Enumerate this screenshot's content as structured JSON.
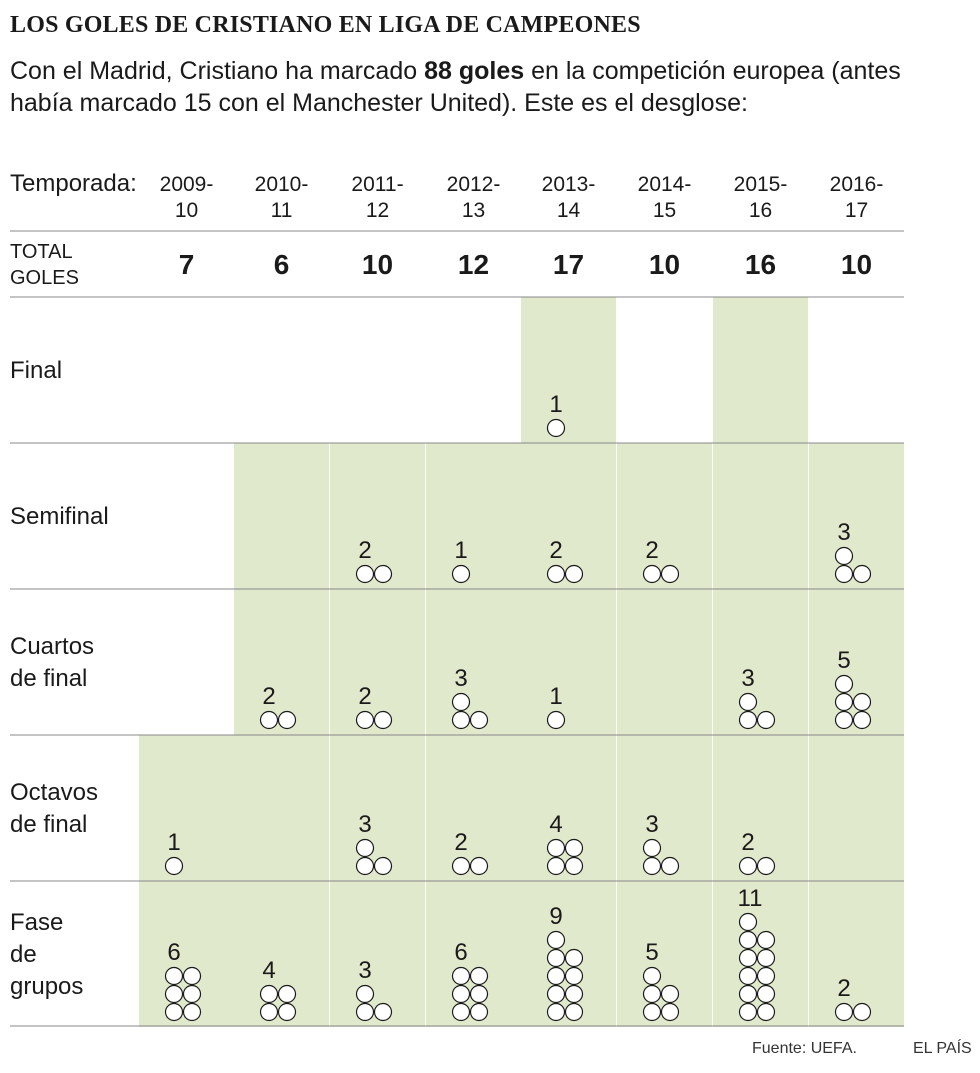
{
  "header": {
    "title": "LOS GOLES DE CRISTIANO EN LIGA DE CAMPEONES",
    "subtitle_before": "Con el Madrid, Cristiano ha marcado ",
    "subtitle_bold": "88 goles",
    "subtitle_after": " en la competición europea (antes había marcado 15 con el Manchester United). Este es el desglose:"
  },
  "footer": {
    "source": "Fuente: UEFA.",
    "brand": "EL PAÍS"
  },
  "colors": {
    "highlight": "#e1e9cc",
    "circle_stroke": "#1a1a1a",
    "rule": "#888888"
  },
  "chart_data": {
    "type": "table",
    "row_header_label": "Temporada:",
    "total_label": [
      "TOTAL",
      "GOLES"
    ],
    "seasons": [
      [
        "2009-",
        "10"
      ],
      [
        "2010-",
        "11"
      ],
      [
        "2011-",
        "12"
      ],
      [
        "2012-",
        "13"
      ],
      [
        "2013-",
        "14"
      ],
      [
        "2014-",
        "15"
      ],
      [
        "2015-",
        "16"
      ],
      [
        "2016-",
        "17"
      ]
    ],
    "totals": [
      7,
      6,
      10,
      12,
      17,
      10,
      16,
      10
    ],
    "rounds": [
      {
        "label": [
          "Final"
        ],
        "goals": [
          null,
          null,
          null,
          null,
          1,
          null,
          0,
          null
        ]
      },
      {
        "label": [
          "Semifinal"
        ],
        "goals": [
          null,
          0,
          2,
          1,
          2,
          2,
          0,
          3
        ]
      },
      {
        "label": [
          "Cuartos",
          "de final"
        ],
        "goals": [
          null,
          2,
          2,
          3,
          1,
          0,
          3,
          5
        ]
      },
      {
        "label": [
          "Octavos",
          "de final"
        ],
        "goals": [
          1,
          0,
          3,
          2,
          4,
          3,
          2,
          0
        ]
      },
      {
        "label": [
          "Fase",
          "de",
          "grupos"
        ],
        "goals": [
          6,
          4,
          3,
          6,
          9,
          5,
          11,
          2
        ]
      }
    ]
  }
}
